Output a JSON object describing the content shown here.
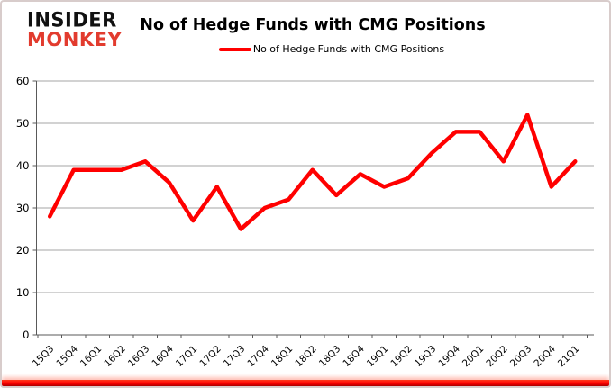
{
  "branding": {
    "logo_line1": "INSIDER",
    "logo_line2": "MONKEY",
    "logo_line2_color": "#e23b2e"
  },
  "header": {
    "title": "No of Hedge Funds with CMG Positions"
  },
  "legend": {
    "label": "No of Hedge Funds with CMG Positions",
    "swatch_color": "#ff0000",
    "swatch_name": "red-line-swatch"
  },
  "chart_data": {
    "type": "line",
    "title": "No of Hedge Funds with CMG Positions",
    "categories": [
      "15Q3",
      "15Q4",
      "16Q1",
      "16Q2",
      "16Q3",
      "16Q4",
      "17Q1",
      "17Q2",
      "17Q3",
      "17Q4",
      "18Q1",
      "18Q2",
      "18Q3",
      "18Q4",
      "19Q1",
      "19Q2",
      "19Q3",
      "19Q4",
      "20Q1",
      "20Q2",
      "20Q3",
      "20Q4",
      "21Q1"
    ],
    "series": [
      {
        "name": "No of Hedge Funds with CMG Positions",
        "color": "#ff0000",
        "values": [
          28,
          39,
          39,
          39,
          41,
          36,
          27,
          35,
          25,
          30,
          32,
          39,
          33,
          38,
          35,
          37,
          43,
          48,
          48,
          41,
          52,
          35,
          41
        ]
      }
    ],
    "xlabel": "",
    "ylabel": "",
    "ylim": [
      0,
      60
    ],
    "yticks": [
      0,
      10,
      20,
      30,
      40,
      50,
      60
    ],
    "grid": true,
    "gridline_color": "#a6a6a6",
    "axis_color": "#595959",
    "legend_position": "top"
  }
}
